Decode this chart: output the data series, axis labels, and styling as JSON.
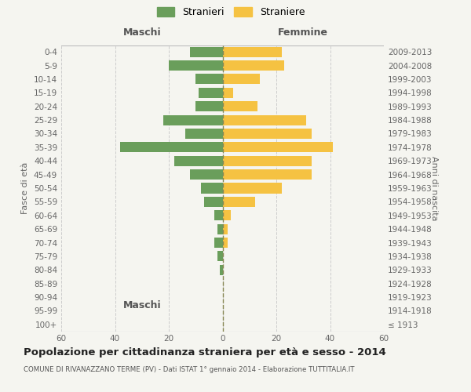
{
  "age_groups": [
    "100+",
    "95-99",
    "90-94",
    "85-89",
    "80-84",
    "75-79",
    "70-74",
    "65-69",
    "60-64",
    "55-59",
    "50-54",
    "45-49",
    "40-44",
    "35-39",
    "30-34",
    "25-29",
    "20-24",
    "15-19",
    "10-14",
    "5-9",
    "0-4"
  ],
  "birth_years": [
    "≤ 1913",
    "1914-1918",
    "1919-1923",
    "1924-1928",
    "1929-1933",
    "1934-1938",
    "1939-1943",
    "1944-1948",
    "1949-1953",
    "1954-1958",
    "1959-1963",
    "1964-1968",
    "1969-1973",
    "1974-1978",
    "1979-1983",
    "1984-1988",
    "1989-1993",
    "1994-1998",
    "1999-2003",
    "2004-2008",
    "2009-2013"
  ],
  "maschi": [
    0,
    0,
    0,
    0,
    1,
    2,
    3,
    2,
    3,
    7,
    8,
    12,
    18,
    38,
    14,
    22,
    10,
    9,
    10,
    20,
    12
  ],
  "femmine": [
    0,
    0,
    0,
    0,
    0,
    0,
    2,
    2,
    3,
    12,
    22,
    33,
    33,
    41,
    33,
    31,
    13,
    4,
    14,
    23,
    22
  ],
  "maschi_color": "#6a9e5b",
  "femmine_color": "#f5c242",
  "background_color": "#f5f5f0",
  "grid_color": "#cccccc",
  "center_line_color": "#888855",
  "title": "Popolazione per cittadinanza straniera per età e sesso - 2014",
  "subtitle": "COMUNE DI RIVANAZZANO TERME (PV) - Dati ISTAT 1° gennaio 2014 - Elaborazione TUTTITALIA.IT",
  "maschi_label": "Stranieri",
  "femmine_label": "Straniere",
  "left_header": "Maschi",
  "right_header": "Femmine",
  "y_left_label": "Fasce di età",
  "y_right_label": "Anni di nascita",
  "xlim": 60
}
